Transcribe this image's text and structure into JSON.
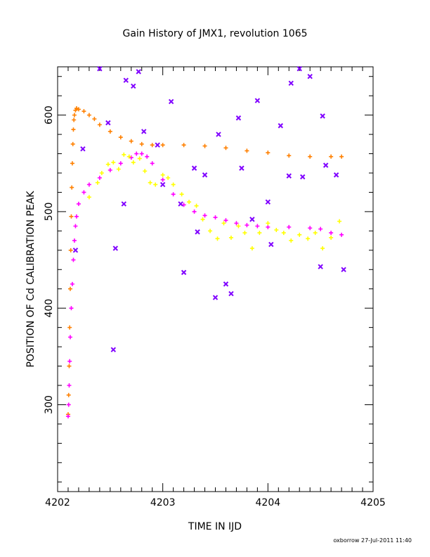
{
  "chart_data": {
    "type": "scatter",
    "title": "Gain History of JMX1, revolution 1065",
    "xlabel": "TIME IN IJD",
    "ylabel": "POSITION OF Cd CALIBRATION PEAK",
    "xlim": [
      4202,
      4205
    ],
    "ylim": [
      210,
      650
    ],
    "x_ticks": [
      "4202",
      "4203",
      "4204",
      "4205"
    ],
    "y_ticks": [
      "300",
      "400",
      "500",
      "600"
    ],
    "grid": false,
    "legend": "none",
    "footer": "oxborrow 27-Jul-2011 11:40",
    "series": [
      {
        "color": "#ff8000",
        "marker": "plus",
        "x": [
          4202.1,
          4202.105,
          4202.11,
          4202.115,
          4202.12,
          4202.125,
          4202.13,
          4202.135,
          4202.14,
          4202.145,
          4202.15,
          4202.155,
          4202.16,
          4202.17,
          4202.18,
          4202.2,
          4202.25,
          4202.3,
          4202.35,
          4202.4,
          4202.5,
          4202.6,
          4202.7,
          4202.8,
          4202.9,
          4203.0,
          4203.2,
          4203.4,
          4203.6,
          4203.8,
          4204.0,
          4204.2,
          4204.4,
          4204.6,
          4204.7
        ],
        "y": [
          290,
          310,
          340,
          380,
          420,
          460,
          495,
          525,
          550,
          570,
          585,
          595,
          600,
          605,
          607,
          606,
          604,
          600,
          596,
          590,
          583,
          577,
          573,
          570,
          569,
          569,
          569,
          568,
          566,
          563,
          561,
          558,
          557,
          557,
          557
        ]
      },
      {
        "color": "#ff00ff",
        "marker": "plus",
        "x": [
          4202.1,
          4202.105,
          4202.11,
          4202.115,
          4202.12,
          4202.13,
          4202.14,
          4202.15,
          4202.16,
          4202.17,
          4202.18,
          4202.2,
          4202.25,
          4202.3,
          4202.4,
          4202.5,
          4202.6,
          4202.7,
          4202.75,
          4202.8,
          4202.85,
          4202.9,
          4203.0,
          4203.1,
          4203.2,
          4203.3,
          4203.4,
          4203.5,
          4203.6,
          4203.7,
          4203.8,
          4203.9,
          4204.0,
          4204.2,
          4204.4,
          4204.5,
          4204.6,
          4204.7
        ],
        "y": [
          288,
          300,
          320,
          345,
          370,
          400,
          425,
          450,
          470,
          485,
          495,
          508,
          520,
          528,
          535,
          543,
          550,
          556,
          560,
          560,
          557,
          550,
          533,
          518,
          507,
          500,
          496,
          494,
          491,
          488,
          486,
          485,
          484,
          484,
          483,
          482,
          478,
          476
        ]
      },
      {
        "color": "#ffff00",
        "marker": "plus",
        "x": [
          4202.3,
          4202.38,
          4202.42,
          4202.48,
          4202.53,
          4202.58,
          4202.63,
          4202.68,
          4202.72,
          4202.78,
          4202.83,
          4202.88,
          4202.93,
          4203.0,
          4203.05,
          4203.1,
          4203.18,
          4203.25,
          4203.32,
          4203.38,
          4203.45,
          4203.52,
          4203.58,
          4203.65,
          4203.72,
          4203.78,
          4203.85,
          4203.92,
          4204.0,
          4204.08,
          4204.15,
          4204.22,
          4204.3,
          4204.38,
          4204.45,
          4204.52,
          4204.6,
          4204.68
        ],
        "y": [
          515,
          530,
          540,
          549,
          551,
          544,
          559,
          557,
          551,
          555,
          542,
          530,
          528,
          538,
          535,
          528,
          518,
          510,
          506,
          492,
          480,
          472,
          488,
          473,
          485,
          478,
          462,
          478,
          488,
          481,
          478,
          470,
          476,
          472,
          478,
          462,
          473,
          490
        ]
      },
      {
        "color": "#8000ff",
        "marker": "x",
        "x": [
          4202.17,
          4202.24,
          4202.4,
          4202.48,
          4202.53,
          4202.55,
          4202.63,
          4202.65,
          4202.72,
          4202.77,
          4202.82,
          4202.95,
          4203.0,
          4203.08,
          4203.17,
          4203.2,
          4203.3,
          4203.33,
          4203.4,
          4203.5,
          4203.53,
          4203.6,
          4203.65,
          4203.72,
          4203.75,
          4203.85,
          4203.9,
          4204.0,
          4204.03,
          4204.12,
          4204.2,
          4204.22,
          4204.3,
          4204.33,
          4204.4,
          4204.5,
          4204.52,
          4204.55,
          4204.65,
          4204.72
        ],
        "y": [
          460,
          565,
          648,
          592,
          357,
          462,
          508,
          636,
          630,
          645,
          583,
          569,
          528,
          614,
          508,
          437,
          545,
          479,
          538,
          411,
          580,
          425,
          415,
          597,
          545,
          492,
          615,
          510,
          466,
          589,
          537,
          633,
          648,
          536,
          640,
          443,
          599,
          548,
          538,
          440
        ]
      }
    ]
  }
}
